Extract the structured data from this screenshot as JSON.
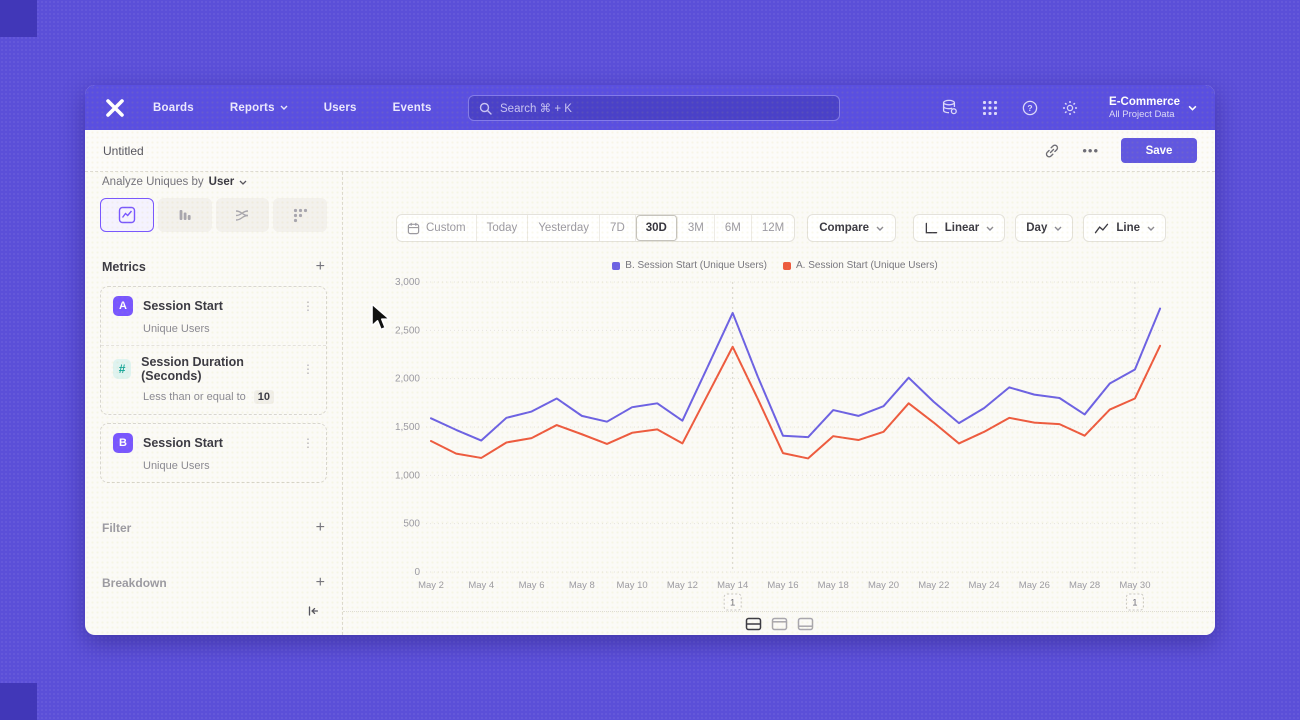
{
  "nav": {
    "logo_name": "mixpanel-logo",
    "items": [
      "Boards",
      "Reports",
      "Users",
      "Events"
    ],
    "search_placeholder": "Search   ⌘ + K",
    "project": {
      "name": "E-Commerce",
      "subtitle": "All Project Data"
    }
  },
  "titlebar": {
    "title": "Untitled",
    "more_label": "•••",
    "save_label": "Save"
  },
  "sidebar": {
    "analyze_label": "Analyze Uniques by",
    "analyze_value": "User",
    "tabs": [
      "insights",
      "funnels",
      "flows",
      "retention"
    ],
    "active_tab": "insights",
    "metrics_header": "Metrics",
    "add_label": "+",
    "metrics": [
      {
        "badge": "A",
        "title": "Session Start",
        "subtitle": "Unique Users"
      },
      {
        "badge": "#",
        "title": "Session Duration (Seconds)",
        "subtitle": "Less than or equal to",
        "value": "10"
      },
      {
        "badge": "B",
        "title": "Session Start",
        "subtitle": "Unique Users"
      }
    ],
    "sections": [
      {
        "label": "Filter"
      },
      {
        "label": "Breakdown"
      }
    ]
  },
  "toolbar": {
    "ranges": [
      "Custom",
      "Today",
      "Yesterday",
      "7D",
      "30D",
      "3M",
      "6M",
      "12M"
    ],
    "selected_range": "30D",
    "compare_label": "Compare",
    "scale_label": "Linear",
    "interval_label": "Day",
    "chart_type_label": "Line"
  },
  "chart_data": {
    "type": "line",
    "title": "",
    "xlabel": "",
    "ylabel": "",
    "ylim": [
      0,
      3000
    ],
    "yticks": [
      0,
      500,
      1000,
      1500,
      2000,
      2500,
      3000
    ],
    "grid": true,
    "legend_position": "top-center",
    "x": [
      "May 2",
      "May 3",
      "May 4",
      "May 5",
      "May 6",
      "May 7",
      "May 8",
      "May 9",
      "May 10",
      "May 11",
      "May 12",
      "May 13",
      "May 14",
      "May 15",
      "May 16",
      "May 17",
      "May 18",
      "May 19",
      "May 20",
      "May 21",
      "May 22",
      "May 23",
      "May 24",
      "May 25",
      "May 26",
      "May 27",
      "May 28",
      "May 29",
      "May 30",
      "May 31"
    ],
    "x_tick_step": 2,
    "series": [
      {
        "name": "B. Session Start (Unique Users)",
        "color": "#6C61E4",
        "values": [
          1590,
          1470,
          1360,
          1595,
          1660,
          1795,
          1615,
          1555,
          1705,
          1745,
          1565,
          2120,
          2680,
          2020,
          1410,
          1395,
          1675,
          1615,
          1715,
          2010,
          1760,
          1540,
          1695,
          1910,
          1835,
          1800,
          1630,
          1950,
          2095,
          2725
        ]
      },
      {
        "name": "A. Session Start (Unique Users)",
        "color": "#ED5A3F",
        "values": [
          1355,
          1225,
          1180,
          1340,
          1385,
          1520,
          1425,
          1325,
          1440,
          1475,
          1330,
          1830,
          2330,
          1790,
          1230,
          1175,
          1405,
          1365,
          1450,
          1745,
          1545,
          1330,
          1450,
          1595,
          1545,
          1530,
          1410,
          1680,
          1795,
          2340
        ]
      }
    ],
    "annotations": [
      {
        "x_index": 12,
        "label": "1"
      },
      {
        "x_index": 28,
        "label": "1"
      }
    ]
  },
  "bottom_bar": {
    "layout_icons": [
      "chart-and-table",
      "chart-with-header",
      "table-only"
    ],
    "active_index": 0
  },
  "colors": {
    "accent_purple": "#7856FF",
    "series_b": "#6C61E4",
    "series_a": "#ED5A3F",
    "navbar": "#5A4FE0",
    "background": "#5B4FD8"
  }
}
